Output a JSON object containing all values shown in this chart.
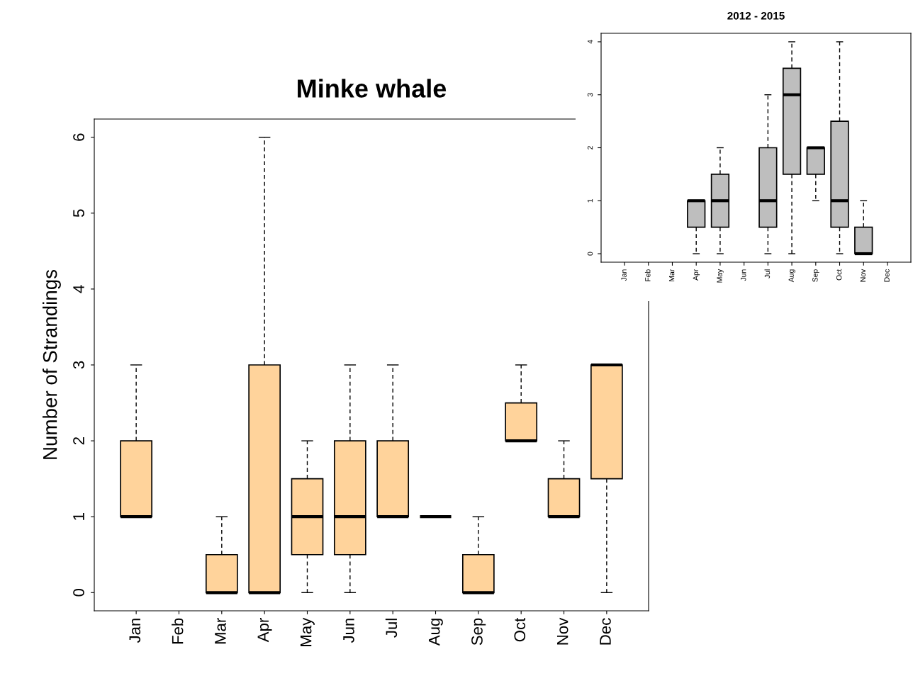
{
  "chart_data": [
    {
      "type": "box",
      "title": "Minke whale",
      "ylabel": "Number of Strandings",
      "color": "#ffd39b",
      "categories": [
        "Jan",
        "Feb",
        "Mar",
        "Apr",
        "May",
        "Jun",
        "Jul",
        "Aug",
        "Sep",
        "Oct",
        "Nov",
        "Dec"
      ],
      "boxes": [
        {
          "low": 1,
          "q1": 1,
          "median": 1,
          "q3": 2,
          "high": 3
        },
        null,
        {
          "low": 0,
          "q1": 0,
          "median": 0,
          "q3": 0.5,
          "high": 1
        },
        {
          "low": 0,
          "q1": 0,
          "median": 0,
          "q3": 3,
          "high": 6
        },
        {
          "low": 0,
          "q1": 0.5,
          "median": 1,
          "q3": 1.5,
          "high": 2
        },
        {
          "low": 0,
          "q1": 0.5,
          "median": 1,
          "q3": 2,
          "high": 3
        },
        {
          "low": 1,
          "q1": 1,
          "median": 1,
          "q3": 2,
          "high": 3
        },
        {
          "low": 1,
          "q1": 1,
          "median": 1,
          "q3": 1,
          "high": 1
        },
        {
          "low": 0,
          "q1": 0,
          "median": 0,
          "q3": 0.5,
          "high": 1
        },
        {
          "low": 2,
          "q1": 2,
          "median": 2,
          "q3": 2.5,
          "high": 3
        },
        {
          "low": 1,
          "q1": 1,
          "median": 1,
          "q3": 1.5,
          "high": 2
        },
        {
          "low": 0,
          "q1": 1.5,
          "median": 3,
          "q3": 3,
          "high": 3
        }
      ],
      "ylim": [
        -0.24,
        6.24
      ],
      "yticks": [
        0,
        1,
        2,
        3,
        4,
        5,
        6
      ]
    },
    {
      "type": "box",
      "title": "2012 - 2015",
      "color": "#bebebe",
      "categories": [
        "Jan",
        "Feb",
        "Mar",
        "Apr",
        "May",
        "Jun",
        "Jul",
        "Aug",
        "Sep",
        "Oct",
        "Nov",
        "Dec"
      ],
      "boxes": [
        null,
        null,
        null,
        {
          "low": 0,
          "q1": 0.5,
          "median": 1,
          "q3": 1,
          "high": 1
        },
        {
          "low": 0,
          "q1": 0.5,
          "median": 1,
          "q3": 1.5,
          "high": 2
        },
        null,
        {
          "low": 0,
          "q1": 0.5,
          "median": 1,
          "q3": 2,
          "high": 3
        },
        {
          "low": 0,
          "q1": 1.5,
          "median": 3,
          "q3": 3.5,
          "high": 4
        },
        {
          "low": 1,
          "q1": 1.5,
          "median": 2,
          "q3": 2,
          "high": 2
        },
        {
          "low": 0,
          "q1": 0.5,
          "median": 1,
          "q3": 2.5,
          "high": 4
        },
        {
          "low": 0,
          "q1": 0,
          "median": 0,
          "q3": 0.5,
          "high": 1
        },
        null
      ],
      "ylim": [
        -0.16,
        4.16
      ],
      "yticks": [
        0,
        1,
        2,
        3,
        4
      ]
    }
  ]
}
